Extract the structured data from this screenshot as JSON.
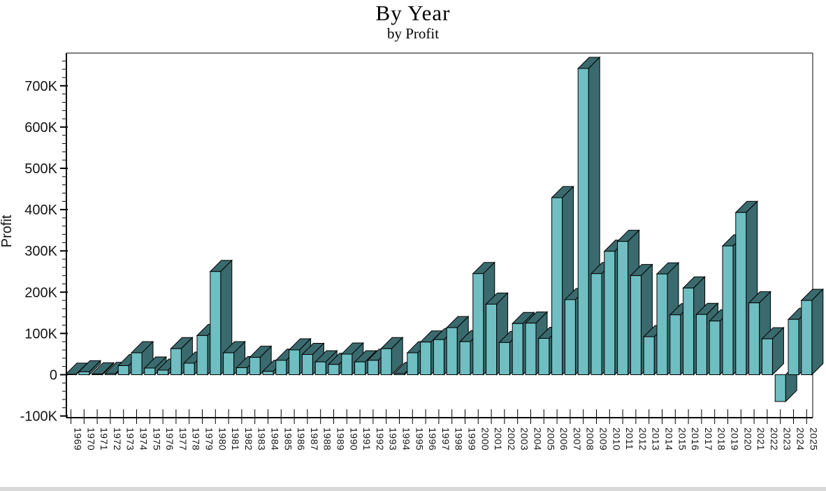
{
  "chart_data": {
    "type": "bar",
    "title": "By Year",
    "subtitle": "by Profit",
    "ylabel": "Profit",
    "xlabel": "",
    "legend": "none",
    "grid": "off",
    "categories": [
      "1969",
      "1970",
      "1971",
      "1972",
      "1973",
      "1974",
      "1975",
      "1976",
      "1977",
      "1978",
      "1979",
      "1980",
      "1981",
      "1982",
      "1983",
      "1984",
      "1985",
      "1986",
      "1987",
      "1988",
      "1989",
      "1990",
      "1991",
      "1992",
      "1993",
      "1994",
      "1995",
      "1996",
      "1997",
      "1998",
      "1999",
      "2000",
      "2001",
      "2002",
      "2003",
      "2004",
      "2005",
      "2006",
      "2007",
      "2008",
      "2009",
      "2010",
      "2011",
      "2012",
      "2013",
      "2014",
      "2015",
      "2016",
      "2017",
      "2018",
      "2019",
      "2020",
      "2021",
      "2022",
      "2023",
      "2024",
      "2025"
    ],
    "values_k": [
      1,
      7,
      2,
      3,
      22,
      53,
      16,
      11,
      63,
      28,
      95,
      250,
      53,
      17,
      42,
      8,
      35,
      60,
      49,
      31,
      25,
      50,
      31,
      35,
      63,
      3,
      53,
      79,
      85,
      114,
      80,
      245,
      171,
      78,
      124,
      125,
      88,
      429,
      182,
      742,
      245,
      299,
      323,
      240,
      92,
      244,
      145,
      210,
      146,
      130,
      312,
      393,
      174,
      87,
      -65,
      134,
      180
    ],
    "unit": "K",
    "y_axis": {
      "ticks": [
        {
          "v": -100,
          "label": "-100K"
        },
        {
          "v": 0,
          "label": "0"
        },
        {
          "v": 100,
          "label": "100K"
        },
        {
          "v": 200,
          "label": "200K"
        },
        {
          "v": 300,
          "label": "300K"
        },
        {
          "v": 400,
          "label": "400K"
        },
        {
          "v": 500,
          "label": "500K"
        },
        {
          "v": 600,
          "label": "600K"
        },
        {
          "v": 700,
          "label": "700K"
        }
      ],
      "minor_step_k": 20,
      "ylim_k": [
        -110,
        790
      ]
    },
    "colors": {
      "bar_front": "#6FBEC2",
      "bar_side": "#3A6A6D",
      "outline": "#000000",
      "axis": "#000000",
      "tick_text": "#151515",
      "footer_strip": "#d9d9d9"
    }
  }
}
